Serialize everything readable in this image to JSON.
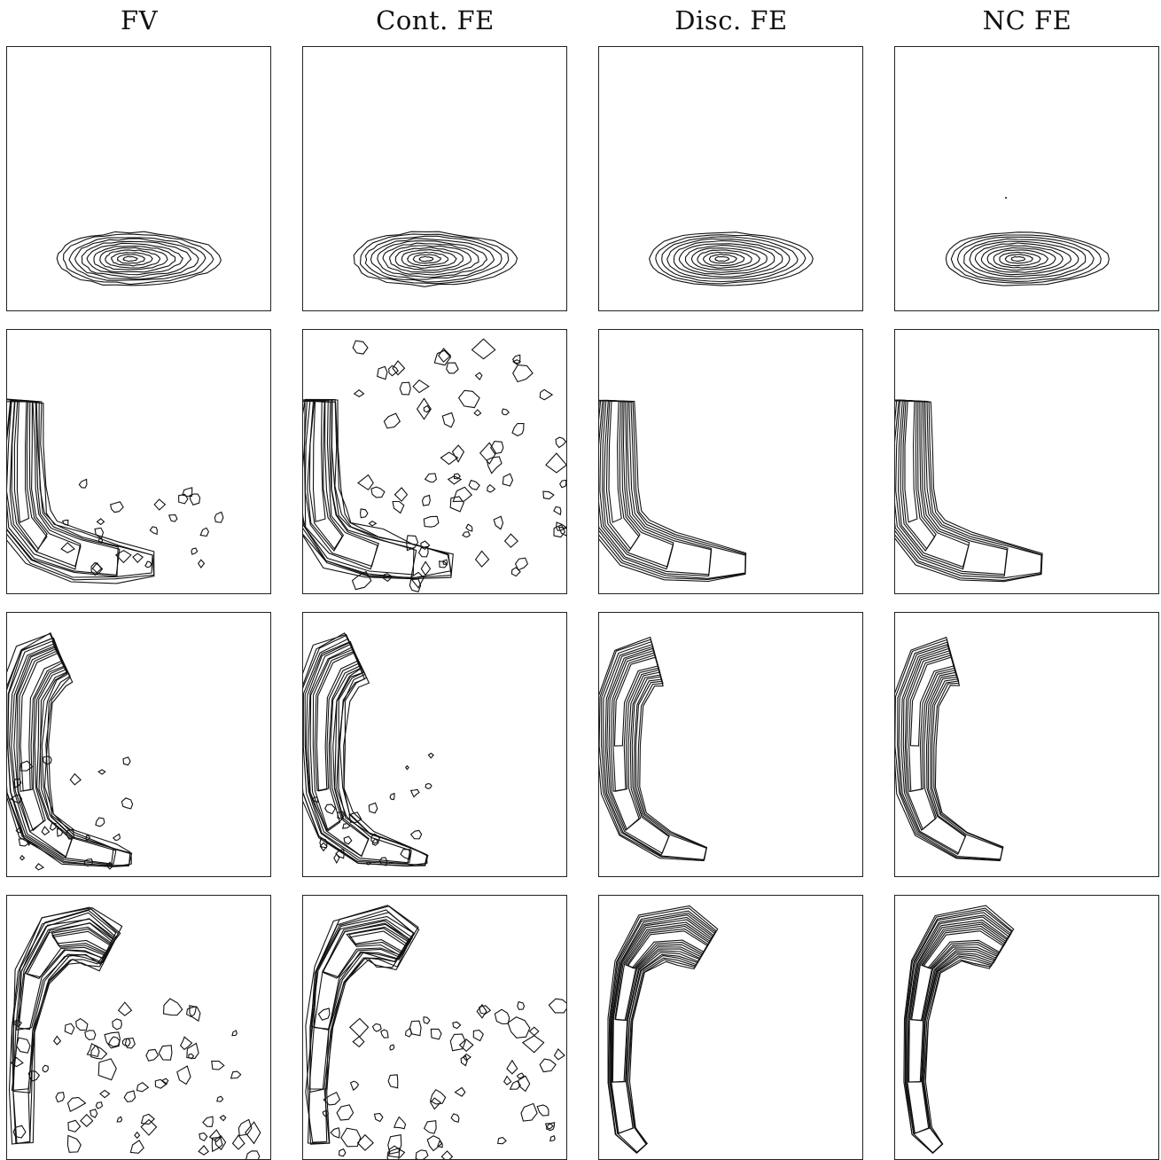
{
  "columns": [
    {
      "title": "FV"
    },
    {
      "title": "Cont. FE"
    },
    {
      "title": "Disc. FE"
    },
    {
      "title": "NC FE"
    }
  ],
  "rows": [
    {
      "shape": "ellipse",
      "noise": [
        "low",
        "low",
        "none",
        "none"
      ]
    },
    {
      "shape": "L",
      "noise": [
        "medium",
        "high",
        "none",
        "none"
      ]
    },
    {
      "shape": "bent",
      "noise": [
        "medium",
        "medium",
        "none",
        "none"
      ]
    },
    {
      "shape": "hook",
      "noise": [
        "high",
        "high",
        "none",
        "none"
      ]
    }
  ]
}
